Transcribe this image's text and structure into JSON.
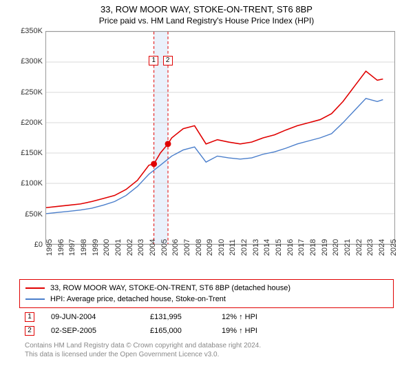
{
  "title": "33, ROW MOOR WAY, STOKE-ON-TRENT, ST6 8BP",
  "subtitle": "Price paid vs. HM Land Registry's House Price Index (HPI)",
  "chart": {
    "type": "line",
    "background_color": "#ffffff",
    "grid_color": "#d8d8d8",
    "border_color": "#999999",
    "xlim_years": [
      1995,
      2025.5
    ],
    "ylim": [
      0,
      350000
    ],
    "ytick_step": 50000,
    "yticks": [
      "£0",
      "£50K",
      "£100K",
      "£150K",
      "£200K",
      "£250K",
      "£300K",
      "£350K"
    ],
    "xticks": [
      "1995",
      "1996",
      "1997",
      "1998",
      "1999",
      "2000",
      "2001",
      "2002",
      "2003",
      "2004",
      "2005",
      "2006",
      "2007",
      "2008",
      "2009",
      "2010",
      "2011",
      "2012",
      "2013",
      "2014",
      "2015",
      "2016",
      "2017",
      "2018",
      "2019",
      "2020",
      "2021",
      "2022",
      "2023",
      "2024",
      "2025"
    ],
    "title_fontsize": 13,
    "label_fontsize": 11,
    "legend_border_color": "#e00000",
    "series": [
      {
        "name": "property",
        "label": "33, ROW MOOR WAY, STOKE-ON-TRENT, ST6 8BP (detached house)",
        "color": "#e00000",
        "line_width": 1.6,
        "data_by_year": [
          [
            1995,
            60000
          ],
          [
            1996,
            62000
          ],
          [
            1997,
            64000
          ],
          [
            1998,
            66000
          ],
          [
            1999,
            70000
          ],
          [
            2000,
            75000
          ],
          [
            2001,
            80000
          ],
          [
            2002,
            90000
          ],
          [
            2003,
            105000
          ],
          [
            2004,
            130000
          ],
          [
            2004.44,
            131995
          ],
          [
            2005,
            150000
          ],
          [
            2005.67,
            165000
          ],
          [
            2006,
            175000
          ],
          [
            2007,
            190000
          ],
          [
            2008,
            195000
          ],
          [
            2009,
            165000
          ],
          [
            2010,
            172000
          ],
          [
            2011,
            168000
          ],
          [
            2012,
            165000
          ],
          [
            2013,
            168000
          ],
          [
            2014,
            175000
          ],
          [
            2015,
            180000
          ],
          [
            2016,
            188000
          ],
          [
            2017,
            195000
          ],
          [
            2018,
            200000
          ],
          [
            2019,
            205000
          ],
          [
            2020,
            215000
          ],
          [
            2021,
            235000
          ],
          [
            2022,
            260000
          ],
          [
            2023,
            285000
          ],
          [
            2024,
            270000
          ],
          [
            2024.5,
            272000
          ]
        ]
      },
      {
        "name": "hpi",
        "label": "HPI: Average price, detached house, Stoke-on-Trent",
        "color": "#4a7ecb",
        "line_width": 1.4,
        "data_by_year": [
          [
            1995,
            50000
          ],
          [
            1996,
            52000
          ],
          [
            1997,
            54000
          ],
          [
            1998,
            56000
          ],
          [
            1999,
            59000
          ],
          [
            2000,
            64000
          ],
          [
            2001,
            70000
          ],
          [
            2002,
            80000
          ],
          [
            2003,
            95000
          ],
          [
            2004,
            115000
          ],
          [
            2005,
            130000
          ],
          [
            2006,
            145000
          ],
          [
            2007,
            155000
          ],
          [
            2008,
            160000
          ],
          [
            2009,
            135000
          ],
          [
            2010,
            145000
          ],
          [
            2011,
            142000
          ],
          [
            2012,
            140000
          ],
          [
            2013,
            142000
          ],
          [
            2014,
            148000
          ],
          [
            2015,
            152000
          ],
          [
            2016,
            158000
          ],
          [
            2017,
            165000
          ],
          [
            2018,
            170000
          ],
          [
            2019,
            175000
          ],
          [
            2020,
            182000
          ],
          [
            2021,
            200000
          ],
          [
            2022,
            220000
          ],
          [
            2023,
            240000
          ],
          [
            2024,
            235000
          ],
          [
            2024.5,
            238000
          ]
        ]
      }
    ],
    "sale_markers": [
      {
        "n": "1",
        "year": 2004.44,
        "price": 131995,
        "dot_color": "#e00000"
      },
      {
        "n": "2",
        "year": 2005.67,
        "price": 165000,
        "dot_color": "#e00000"
      }
    ],
    "highlight_band": {
      "from_year": 2004.44,
      "to_year": 2005.67,
      "color": "#eaf1fb"
    },
    "marker_dot_radius": 4.5
  },
  "legend": {
    "rows": [
      {
        "color": "#e00000",
        "label": "33, ROW MOOR WAY, STOKE-ON-TRENT, ST6 8BP (detached house)"
      },
      {
        "color": "#4a7ecb",
        "label": "HPI: Average price, detached house, Stoke-on-Trent"
      }
    ]
  },
  "sales": [
    {
      "n": "1",
      "date": "09-JUN-2004",
      "price": "£131,995",
      "delta": "12% ↑ HPI"
    },
    {
      "n": "2",
      "date": "02-SEP-2005",
      "price": "£165,000",
      "delta": "19% ↑ HPI"
    }
  ],
  "footer_line1": "Contains HM Land Registry data © Crown copyright and database right 2024.",
  "footer_line2": "This data is licensed under the Open Government Licence v3.0."
}
